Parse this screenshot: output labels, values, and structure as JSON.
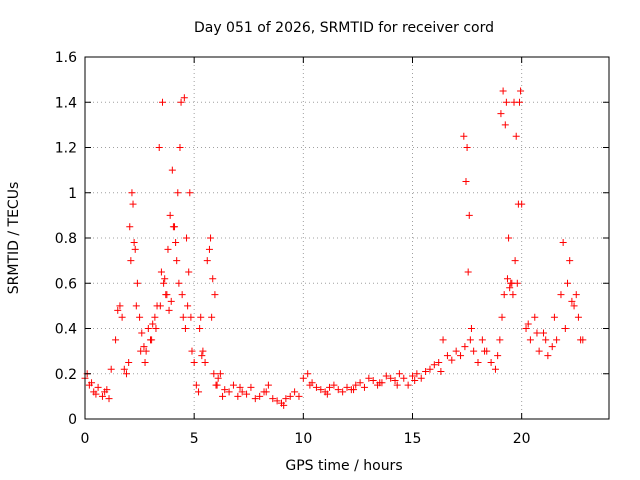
{
  "chart_data": {
    "type": "scatter",
    "title": "Day 051 of 2026, SRMTID for receiver cord",
    "xlabel": "GPS time / hours",
    "ylabel": "SRMTID / TECUs",
    "xlim": [
      0,
      24
    ],
    "ylim": [
      0,
      1.6
    ],
    "xticks": [
      0,
      5,
      10,
      15,
      20
    ],
    "xtick_labels": [
      "0",
      "5",
      "10",
      "15",
      "20"
    ],
    "yticks": [
      0,
      0.2,
      0.4,
      0.6,
      0.8,
      1.0,
      1.2,
      1.4,
      1.6
    ],
    "ytick_labels": [
      "0",
      "0.2",
      "0.4",
      "0.6",
      "0.8",
      "1",
      "1.2",
      "1.4",
      "1.6"
    ],
    "grid": true,
    "marker": "+",
    "color": "#ff0000",
    "series": [
      {
        "name": "SRMTID",
        "x": [
          0.0,
          0.2,
          0.4,
          0.6,
          0.8,
          1.0,
          1.2,
          1.4,
          1.6,
          1.7,
          1.8,
          2.0,
          2.1,
          2.2,
          2.3,
          2.4,
          2.5,
          2.6,
          2.7,
          2.8,
          2.9,
          3.0,
          3.1,
          3.2,
          3.3,
          3.4,
          3.5,
          3.6,
          3.7,
          3.8,
          3.9,
          4.0,
          4.1,
          4.2,
          4.3,
          4.4,
          4.5,
          4.6,
          4.7,
          4.8,
          4.9,
          5.0,
          5.1,
          5.2,
          5.3,
          5.4,
          5.5,
          5.6,
          5.7,
          5.8,
          5.9,
          6.0,
          6.1,
          6.2,
          6.4,
          6.6,
          6.8,
          7.0,
          7.2,
          7.4,
          7.6,
          7.8,
          8.0,
          8.2,
          8.4,
          8.6,
          8.8,
          9.0,
          9.2,
          9.4,
          9.6,
          9.8,
          10.0,
          10.2,
          10.4,
          10.6,
          10.8,
          11.0,
          11.2,
          11.4,
          11.6,
          11.8,
          12.0,
          12.2,
          12.4,
          12.6,
          12.8,
          13.0,
          13.2,
          13.4,
          13.6,
          13.8,
          14.0,
          14.2,
          14.4,
          14.6,
          14.8,
          15.0,
          15.2,
          15.4,
          15.6,
          15.8,
          16.0,
          16.2,
          16.4,
          16.6,
          16.8,
          17.0,
          17.2,
          17.4,
          17.5,
          17.6,
          17.7,
          17.8,
          18.0,
          18.2,
          18.4,
          18.6,
          18.8,
          19.0,
          19.1,
          19.2,
          19.3,
          19.4,
          19.5,
          19.6,
          19.7,
          19.8,
          19.9,
          20.0,
          20.2,
          20.4,
          20.6,
          20.8,
          21.0,
          21.2,
          21.4,
          21.6,
          21.8,
          22.0,
          22.2,
          22.4,
          22.6,
          22.8,
          0.1,
          0.3,
          0.5,
          0.9,
          1.1,
          1.5,
          1.9,
          2.05,
          2.15,
          2.25,
          2.35,
          2.55,
          2.75,
          3.05,
          3.25,
          3.45,
          3.55,
          3.65,
          3.75,
          3.85,
          3.95,
          4.05,
          4.15,
          4.25,
          4.35,
          4.45,
          4.55,
          4.65,
          4.75,
          4.85,
          5.25,
          5.35,
          5.75,
          5.85,
          5.95,
          6.05,
          6.3,
          7.1,
          8.3,
          9.1,
          10.3,
          11.1,
          12.3,
          13.5,
          14.3,
          15.1,
          16.3,
          17.35,
          17.45,
          17.55,
          17.65,
          18.3,
          18.9,
          19.05,
          19.15,
          19.25,
          19.35,
          19.45,
          19.55,
          19.65,
          19.75,
          19.85,
          19.95,
          20.3,
          20.7,
          21.1,
          21.5,
          21.9,
          22.1,
          22.3,
          22.5,
          22.7
        ],
        "y": [
          0.18,
          0.15,
          0.12,
          0.14,
          0.1,
          0.13,
          0.22,
          0.35,
          0.5,
          0.45,
          0.22,
          0.25,
          0.7,
          0.95,
          0.75,
          0.6,
          0.45,
          0.38,
          0.32,
          0.3,
          0.4,
          0.35,
          0.42,
          0.45,
          0.5,
          1.2,
          0.65,
          0.6,
          0.55,
          0.75,
          0.9,
          1.1,
          0.85,
          0.7,
          0.6,
          1.4,
          0.45,
          0.4,
          0.5,
          1.0,
          0.3,
          0.25,
          0.15,
          0.12,
          0.45,
          0.3,
          0.25,
          0.7,
          0.75,
          0.45,
          0.2,
          0.15,
          0.18,
          0.2,
          0.13,
          0.12,
          0.15,
          0.1,
          0.12,
          0.11,
          0.14,
          0.09,
          0.1,
          0.12,
          0.15,
          0.09,
          0.08,
          0.07,
          0.09,
          0.1,
          0.12,
          0.1,
          0.18,
          0.2,
          0.16,
          0.14,
          0.13,
          0.12,
          0.14,
          0.15,
          0.13,
          0.12,
          0.14,
          0.13,
          0.15,
          0.16,
          0.14,
          0.18,
          0.17,
          0.15,
          0.16,
          0.19,
          0.18,
          0.17,
          0.2,
          0.18,
          0.15,
          0.19,
          0.2,
          0.18,
          0.21,
          0.22,
          0.24,
          0.25,
          0.35,
          0.28,
          0.26,
          0.3,
          0.28,
          0.32,
          1.2,
          0.9,
          0.4,
          0.3,
          0.25,
          0.35,
          0.3,
          0.25,
          0.22,
          0.35,
          0.45,
          0.55,
          1.4,
          0.8,
          0.6,
          0.55,
          0.7,
          0.6,
          1.4,
          0.95,
          0.4,
          0.35,
          0.45,
          0.3,
          0.38,
          0.28,
          0.32,
          0.35,
          0.55,
          0.4,
          0.7,
          0.5,
          0.45,
          0.35,
          0.2,
          0.16,
          0.11,
          0.12,
          0.09,
          0.48,
          0.2,
          0.85,
          1.0,
          0.78,
          0.5,
          0.3,
          0.25,
          0.35,
          0.4,
          0.5,
          1.4,
          0.62,
          0.55,
          0.48,
          0.52,
          0.85,
          0.78,
          1.0,
          1.2,
          0.55,
          1.42,
          0.8,
          0.65,
          0.45,
          0.4,
          0.28,
          0.8,
          0.62,
          0.55,
          0.15,
          0.1,
          0.14,
          0.12,
          0.06,
          0.15,
          0.11,
          0.13,
          0.16,
          0.15,
          0.17,
          0.21,
          1.25,
          1.05,
          0.65,
          0.35,
          0.3,
          0.28,
          1.35,
          1.45,
          1.3,
          0.62,
          0.58,
          0.6,
          1.4,
          1.25,
          0.95,
          1.45,
          0.42,
          0.38,
          0.35,
          0.45,
          0.78,
          0.6,
          0.52,
          0.55,
          0.35
        ]
      }
    ]
  }
}
